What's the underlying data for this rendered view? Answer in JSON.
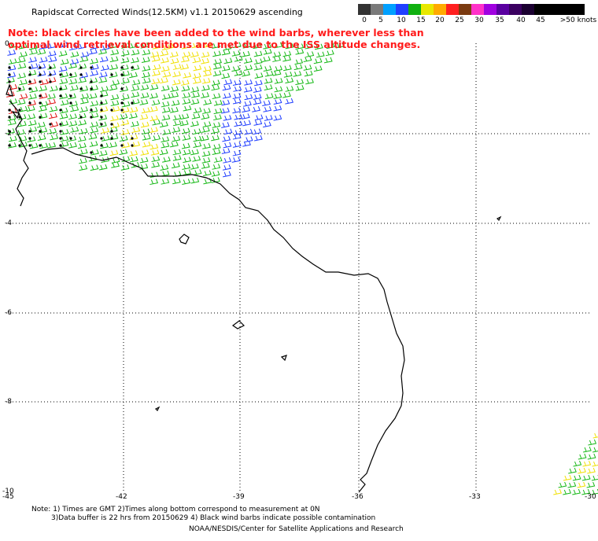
{
  "title": "Rapidscat Corrected Winds(12.5KM) v1.1 20150629 ascending",
  "note": "Note: black circles have been added to the wind barbs, wherever less than optimal wind retrieval conditions are met due to the ISS altitude changes.",
  "legend": {
    "labels": [
      "0",
      "5",
      "10",
      "15",
      "20",
      "25",
      "30",
      "35",
      "40",
      "45",
      ">50 knots"
    ],
    "colors": [
      "#333333",
      "#7a7a7a",
      "#00a0ff",
      "#2040ff",
      "#10b010",
      "#e8e800",
      "#ffaa00",
      "#ff2020",
      "#7a3a10",
      "#ff30c8",
      "#a000e0",
      "#5a00a0",
      "#3a0060",
      "#1a0030",
      "#000000",
      "#000000",
      "#000000",
      "#000000"
    ]
  },
  "axes": {
    "lon_labels": [
      "-45",
      "-42",
      "-39",
      "-36",
      "-33",
      "-30"
    ],
    "lat_labels": [
      "0",
      "-2",
      "-4",
      "-6",
      "-8",
      "-10"
    ]
  },
  "footer": {
    "line1": "Note: 1) Times are GMT 2)Times along bottom correspond to measurement at 0N",
    "line2": "3)Data buffer is 22 hrs from 20150629 4) Black wind barbs indicate possible contamination",
    "credit": "NOAA/NESDIS/Center for Satellite Applications and Research"
  },
  "colors": {
    "note": "#ff1a1a",
    "coastline": "#000000",
    "barb_blue": "#1e3cff",
    "barb_green": "#14b814",
    "barb_yellow": "#f0e000",
    "barb_red": "#e01010"
  }
}
